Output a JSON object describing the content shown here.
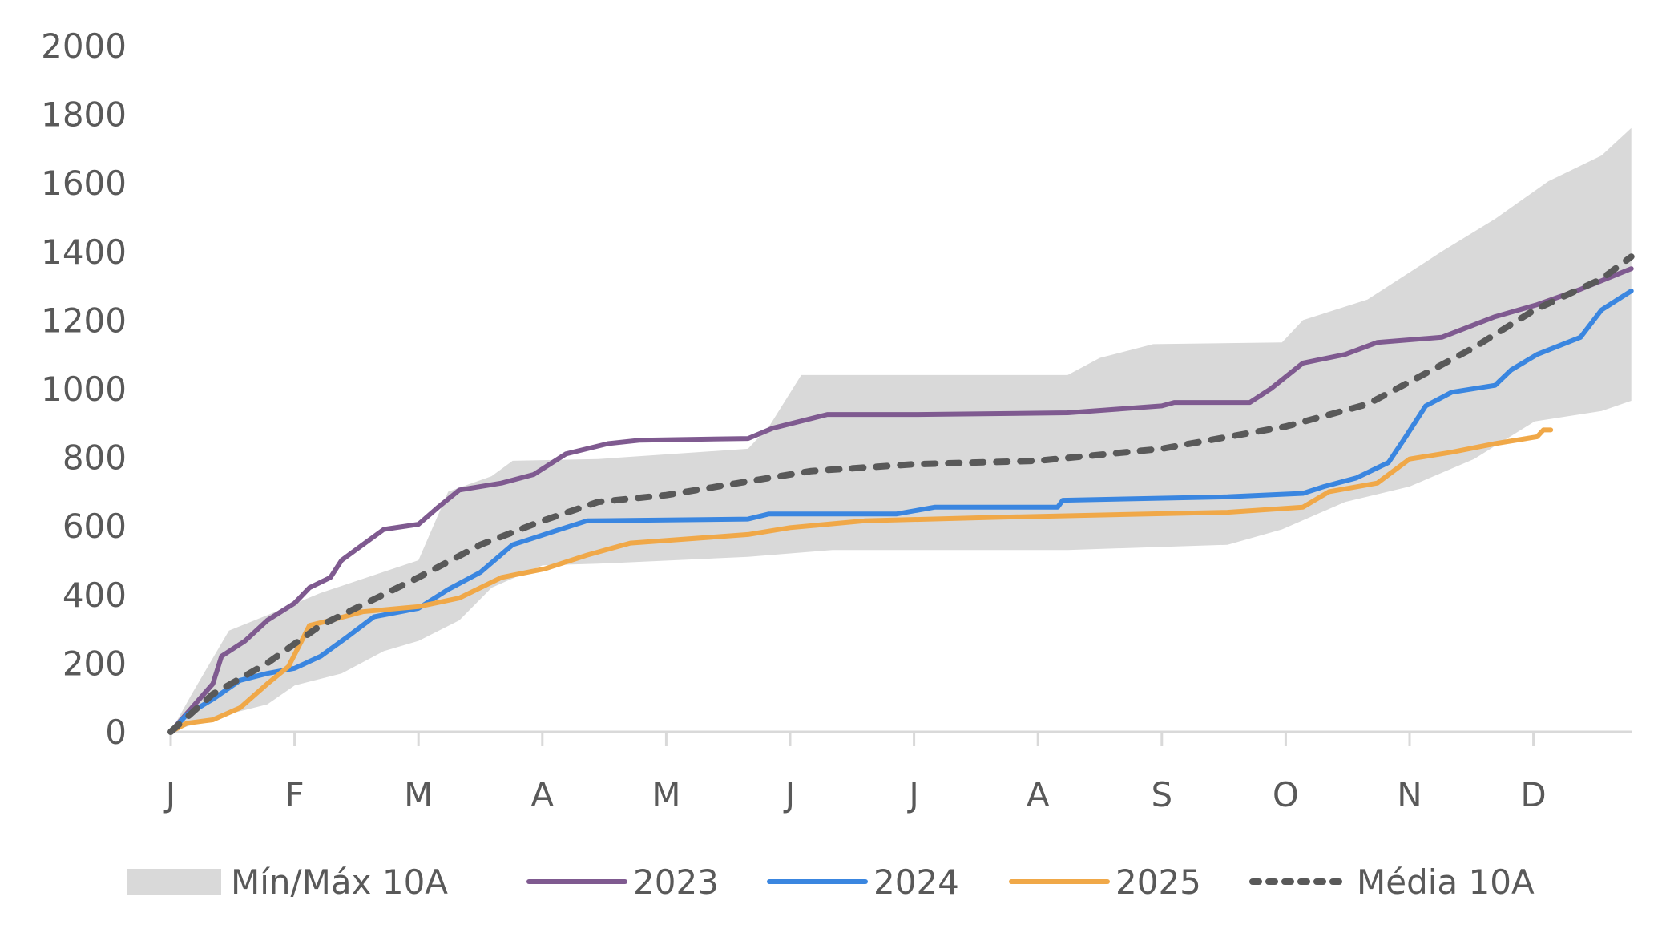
{
  "chart_data": {
    "type": "line",
    "title": "",
    "xlabel": "",
    "ylabel": "",
    "ylim": [
      0,
      2000
    ],
    "yticks": [
      0,
      200,
      400,
      600,
      800,
      1000,
      1200,
      1400,
      1600,
      1800,
      2000
    ],
    "xlim": [
      0,
      11.8
    ],
    "x_unit": "month index (0 = start of January)",
    "categories": [
      "J",
      "F",
      "M",
      "A",
      "M",
      "J",
      "J",
      "A",
      "S",
      "O",
      "N",
      "D"
    ],
    "grid": false,
    "legend_position": "bottom",
    "band": {
      "name": "Mín/Máx 10A",
      "color": "#d9d9d9",
      "upper": [
        [
          0,
          0
        ],
        [
          0.17,
          110
        ],
        [
          0.47,
          295
        ],
        [
          0.78,
          340
        ],
        [
          1.21,
          405
        ],
        [
          2.0,
          500
        ],
        [
          2.24,
          700
        ],
        [
          2.59,
          745
        ],
        [
          2.76,
          790
        ],
        [
          3.45,
          795
        ],
        [
          4.66,
          825
        ],
        [
          4.83,
          890
        ],
        [
          5.09,
          1040
        ],
        [
          6.0,
          1040
        ],
        [
          7.24,
          1040
        ],
        [
          7.5,
          1090
        ],
        [
          7.93,
          1130
        ],
        [
          8.97,
          1135
        ],
        [
          9.14,
          1200
        ],
        [
          9.66,
          1260
        ],
        [
          10.26,
          1400
        ],
        [
          10.69,
          1495
        ],
        [
          11.12,
          1605
        ],
        [
          11.55,
          1680
        ],
        [
          11.79,
          1760
        ]
      ],
      "lower": [
        [
          0,
          0
        ],
        [
          0.34,
          40
        ],
        [
          0.78,
          80
        ],
        [
          1.0,
          135
        ],
        [
          1.38,
          170
        ],
        [
          1.72,
          235
        ],
        [
          2.0,
          265
        ],
        [
          2.33,
          325
        ],
        [
          2.59,
          420
        ],
        [
          3.0,
          485
        ],
        [
          3.45,
          490
        ],
        [
          4.66,
          510
        ],
        [
          5.34,
          530
        ],
        [
          7.24,
          530
        ],
        [
          8.53,
          545
        ],
        [
          8.97,
          590
        ],
        [
          9.48,
          670
        ],
        [
          10.0,
          715
        ],
        [
          10.52,
          795
        ],
        [
          11.01,
          905
        ],
        [
          11.55,
          935
        ],
        [
          11.79,
          965
        ]
      ]
    },
    "series": [
      {
        "name": "2023",
        "color": "#7f5a90",
        "dashed": false,
        "points": [
          [
            0,
            0
          ],
          [
            0.34,
            140
          ],
          [
            0.41,
            220
          ],
          [
            0.6,
            265
          ],
          [
            0.78,
            325
          ],
          [
            1.0,
            375
          ],
          [
            1.12,
            420
          ],
          [
            1.29,
            450
          ],
          [
            1.38,
            500
          ],
          [
            1.55,
            545
          ],
          [
            1.72,
            590
          ],
          [
            2.0,
            605
          ],
          [
            2.16,
            655
          ],
          [
            2.33,
            705
          ],
          [
            2.67,
            725
          ],
          [
            2.93,
            750
          ],
          [
            3.19,
            810
          ],
          [
            3.53,
            840
          ],
          [
            3.79,
            850
          ],
          [
            4.66,
            855
          ],
          [
            4.86,
            885
          ],
          [
            5.3,
            925
          ],
          [
            6.03,
            925
          ],
          [
            7.24,
            930
          ],
          [
            8.0,
            950
          ],
          [
            8.1,
            960
          ],
          [
            8.71,
            960
          ],
          [
            8.88,
            1000
          ],
          [
            9.14,
            1075
          ],
          [
            9.48,
            1100
          ],
          [
            9.74,
            1135
          ],
          [
            10.26,
            1150
          ],
          [
            10.69,
            1210
          ],
          [
            11.03,
            1245
          ],
          [
            11.38,
            1290
          ],
          [
            11.79,
            1350
          ]
        ]
      },
      {
        "name": "2024",
        "color": "#3a86e0",
        "dashed": false,
        "points": [
          [
            0,
            0
          ],
          [
            0.13,
            50
          ],
          [
            0.34,
            95
          ],
          [
            0.56,
            150
          ],
          [
            0.78,
            170
          ],
          [
            1.0,
            185
          ],
          [
            1.21,
            220
          ],
          [
            1.42,
            275
          ],
          [
            1.64,
            335
          ],
          [
            2.0,
            360
          ],
          [
            2.24,
            415
          ],
          [
            2.5,
            465
          ],
          [
            2.76,
            545
          ],
          [
            2.93,
            565
          ],
          [
            3.1,
            585
          ],
          [
            3.36,
            615
          ],
          [
            4.66,
            620
          ],
          [
            4.83,
            635
          ],
          [
            5.86,
            635
          ],
          [
            6.17,
            655
          ],
          [
            7.16,
            655
          ],
          [
            7.2,
            675
          ],
          [
            8.53,
            685
          ],
          [
            9.14,
            695
          ],
          [
            9.31,
            715
          ],
          [
            9.57,
            740
          ],
          [
            9.83,
            785
          ],
          [
            9.96,
            855
          ],
          [
            10.13,
            950
          ],
          [
            10.34,
            990
          ],
          [
            10.69,
            1010
          ],
          [
            10.82,
            1055
          ],
          [
            11.03,
            1100
          ],
          [
            11.38,
            1150
          ],
          [
            11.55,
            1230
          ],
          [
            11.79,
            1285
          ]
        ]
      },
      {
        "name": "2025",
        "color": "#f0a848",
        "dashed": false,
        "points": [
          [
            0,
            0
          ],
          [
            0.13,
            25
          ],
          [
            0.34,
            35
          ],
          [
            0.56,
            70
          ],
          [
            0.78,
            140
          ],
          [
            0.95,
            190
          ],
          [
            1.12,
            310
          ],
          [
            1.29,
            325
          ],
          [
            1.55,
            350
          ],
          [
            2.0,
            365
          ],
          [
            2.33,
            390
          ],
          [
            2.67,
            450
          ],
          [
            3.02,
            475
          ],
          [
            3.36,
            515
          ],
          [
            3.71,
            550
          ],
          [
            4.66,
            575
          ],
          [
            5.0,
            595
          ],
          [
            5.6,
            615
          ],
          [
            6.64,
            625
          ],
          [
            8.53,
            640
          ],
          [
            9.14,
            655
          ],
          [
            9.35,
            700
          ],
          [
            9.74,
            725
          ],
          [
            10.0,
            795
          ],
          [
            10.34,
            815
          ],
          [
            10.69,
            840
          ],
          [
            11.03,
            860
          ],
          [
            11.08,
            880
          ],
          [
            11.14,
            880
          ]
        ]
      },
      {
        "name": "Média 10A",
        "color": "#595959",
        "dashed": true,
        "points": [
          [
            0,
            0
          ],
          [
            0.34,
            110
          ],
          [
            0.78,
            200
          ],
          [
            1.21,
            310
          ],
          [
            2.0,
            450
          ],
          [
            2.5,
            545
          ],
          [
            3.0,
            615
          ],
          [
            3.45,
            670
          ],
          [
            4.0,
            690
          ],
          [
            4.66,
            730
          ],
          [
            5.17,
            760
          ],
          [
            6.0,
            780
          ],
          [
            7.0,
            790
          ],
          [
            8.0,
            825
          ],
          [
            9.0,
            890
          ],
          [
            9.66,
            955
          ],
          [
            10.0,
            1020
          ],
          [
            10.52,
            1120
          ],
          [
            11.01,
            1230
          ],
          [
            11.55,
            1320
          ],
          [
            11.79,
            1385
          ]
        ]
      }
    ]
  },
  "legend": {
    "items": [
      {
        "label": "Mín/Máx 10A",
        "kind": "band",
        "color": "#d9d9d9"
      },
      {
        "label": "2023",
        "kind": "line",
        "color": "#7f5a90"
      },
      {
        "label": "2024",
        "kind": "line",
        "color": "#3a86e0"
      },
      {
        "label": "2025",
        "kind": "line",
        "color": "#f0a848"
      },
      {
        "label": "Média 10A",
        "kind": "dashed",
        "color": "#595959"
      }
    ]
  },
  "axis": {
    "color": "#d9d9d9",
    "label_color": "#595959"
  }
}
